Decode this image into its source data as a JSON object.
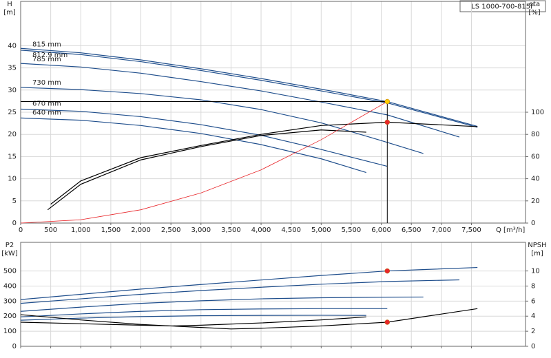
{
  "chart_data": [
    {
      "type": "line",
      "title": "LS 1000-700-815F",
      "ylabel": "H",
      "yunit": "[m]",
      "y2label": "eta",
      "y2unit": "[%]",
      "xlabel": "Q [m³/h]",
      "xlim": [
        0,
        8400
      ],
      "xticks": [
        0,
        500,
        {
          "value": 1000,
          "label": "1,000"
        },
        {
          "value": 1500,
          "label": "1,500"
        },
        {
          "value": 2000,
          "label": "2,000"
        },
        {
          "value": 2500,
          "label": "2,500"
        },
        {
          "value": 3000,
          "label": "3,000"
        },
        {
          "value": 3500,
          "label": "3,500"
        },
        {
          "value": 4000,
          "label": "4,000"
        },
        {
          "value": 4500,
          "label": "4,500"
        },
        {
          "value": 5000,
          "label": "5,000"
        },
        {
          "value": 5500,
          "label": "5,500"
        },
        {
          "value": 6000,
          "label": "6,000"
        },
        {
          "value": 6500,
          "label": "6,500"
        },
        {
          "value": 7000,
          "label": "7,000"
        },
        {
          "value": 7500,
          "label": "7,500"
        }
      ],
      "ylim": [
        0,
        50
      ],
      "yticks": [
        0,
        5,
        10,
        15,
        20,
        25,
        30,
        35,
        40
      ],
      "y2lim": [
        0,
        200
      ],
      "y2ticks": [
        0,
        20,
        40,
        60,
        80,
        100
      ],
      "grid": true,
      "series": [
        {
          "name": "815 mm",
          "color": "#1f4e8c",
          "x": [
            0,
            1000,
            2000,
            3000,
            4000,
            5000,
            6100,
            7600
          ],
          "values": [
            39.4,
            38.4,
            36.8,
            34.8,
            32.6,
            30.2,
            27.4,
            21.8
          ]
        },
        {
          "name": "812.9 mm",
          "color": "#1f4e8c",
          "x": [
            0,
            1000,
            2000,
            3000,
            4000,
            5000,
            6100,
            7600
          ],
          "values": [
            39.0,
            38.0,
            36.4,
            34.4,
            32.2,
            29.8,
            27.1,
            21.6
          ]
        },
        {
          "name": "785 mm",
          "color": "#1f4e8c",
          "x": [
            0,
            1000,
            2000,
            3000,
            4000,
            5000,
            6100,
            7300
          ],
          "values": [
            36.0,
            35.2,
            33.8,
            31.9,
            29.8,
            27.3,
            24.4,
            19.4
          ]
        },
        {
          "name": "730 mm",
          "color": "#1f4e8c",
          "x": [
            0,
            1000,
            2000,
            3000,
            4000,
            5000,
            6000,
            6700
          ],
          "values": [
            30.6,
            30.1,
            29.2,
            27.8,
            25.6,
            22.6,
            18.6,
            15.7
          ]
        },
        {
          "name": "670 mm",
          "color": "#1f4e8c",
          "x": [
            0,
            1000,
            2000,
            3000,
            4000,
            5000,
            6100
          ],
          "values": [
            25.7,
            25.2,
            24.0,
            22.2,
            19.8,
            16.6,
            12.8
          ]
        },
        {
          "name": "640 mm",
          "color": "#1f4e8c",
          "x": [
            0,
            1000,
            2000,
            3000,
            4000,
            5000,
            5750
          ],
          "values": [
            23.7,
            23.2,
            22.0,
            20.2,
            17.7,
            14.5,
            11.4
          ]
        },
        {
          "color": "#000000",
          "axis": "y2",
          "x": [
            500,
            1000,
            2000,
            3000,
            4000,
            5000,
            6100,
            7600
          ],
          "values": [
            17,
            38,
            59,
            70,
            80,
            88,
            91,
            87
          ]
        },
        {
          "color": "#000000",
          "axis": "y2",
          "x": [
            450,
            1000,
            2000,
            3000,
            4000,
            5000,
            5750
          ],
          "values": [
            12,
            35,
            57,
            69,
            79,
            84,
            82
          ]
        },
        {
          "color": "#e8262a",
          "x": [
            0,
            1000,
            2000,
            3000,
            4000,
            5000,
            6100
          ],
          "values": [
            0,
            0.75,
            3,
            6.8,
            12,
            18.8,
            27.4
          ]
        }
      ],
      "points": [
        {
          "x": 6100,
          "y": 27.4,
          "color": "#ffcc00"
        },
        {
          "x": 6100,
          "y": 91,
          "color": "#e8262a",
          "axis": "y2"
        }
      ]
    },
    {
      "type": "line",
      "ylabel": "P2",
      "yunit": "[kW]",
      "y2label": "NPSH",
      "y2unit": "[m]",
      "xlim": [
        0,
        8400
      ],
      "xticks": [
        0,
        500,
        1000,
        1500,
        2000,
        2500,
        3000,
        3500,
        4000,
        4500,
        5000,
        5500,
        6000,
        6500,
        7000,
        7500
      ],
      "ylim": [
        0,
        690
      ],
      "yticks": [
        0,
        100,
        200,
        300,
        400,
        500
      ],
      "y2lim": [
        0,
        13.8
      ],
      "y2ticks": [
        0,
        2,
        4,
        6,
        8,
        10
      ],
      "grid": true,
      "series": [
        {
          "color": "#1f4e8c",
          "x": [
            0,
            1000,
            2000,
            3000,
            4000,
            5000,
            6100,
            7600
          ],
          "values": [
            310,
            345,
            380,
            410,
            440,
            470,
            500,
            523
          ]
        },
        {
          "color": "#1f4e8c",
          "x": [
            0,
            1000,
            2000,
            3000,
            4000,
            5000,
            6100,
            7300
          ],
          "values": [
            285,
            315,
            345,
            370,
            392,
            412,
            430,
            441
          ]
        },
        {
          "color": "#1f4e8c",
          "x": [
            0,
            1000,
            2000,
            3000,
            4000,
            5000,
            6000,
            6700
          ],
          "values": [
            232,
            260,
            285,
            302,
            315,
            322,
            326,
            327
          ]
        },
        {
          "color": "#1f4e8c",
          "x": [
            0,
            1000,
            2000,
            3000,
            4000,
            5000,
            6100
          ],
          "values": [
            195,
            215,
            232,
            243,
            248,
            250,
            250
          ]
        },
        {
          "color": "#1f4e8c",
          "x": [
            0,
            1000,
            2000,
            3000,
            4000,
            5000,
            5750
          ],
          "values": [
            173,
            187,
            197,
            203,
            205,
            206,
            205
          ]
        },
        {
          "color": "#000000",
          "axis": "y2",
          "x": [
            0,
            1000,
            2000,
            3000,
            3500,
            4000,
            5000,
            6100,
            7600
          ],
          "values": [
            4.2,
            3.5,
            2.9,
            2.5,
            2.3,
            2.4,
            2.7,
            3.2,
            5.0
          ]
        },
        {
          "color": "#000000",
          "axis": "y2",
          "x": [
            0,
            1000,
            2000,
            2500,
            3000,
            4000,
            5000,
            5750
          ],
          "values": [
            3.2,
            3.0,
            2.8,
            2.7,
            2.8,
            3.1,
            3.5,
            3.9
          ]
        }
      ],
      "points": [
        {
          "x": 6100,
          "y": 500,
          "color": "#e8262a"
        },
        {
          "x": 6100,
          "y": 3.2,
          "color": "#e8262a",
          "axis": "y2"
        }
      ]
    }
  ]
}
